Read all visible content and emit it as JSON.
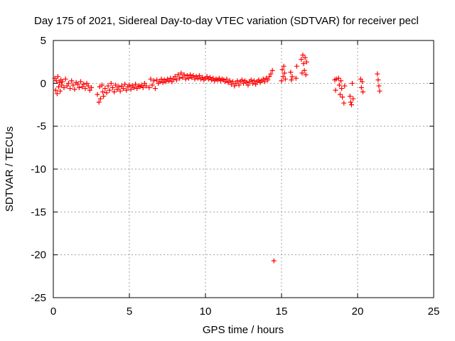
{
  "chart_data": {
    "type": "scatter",
    "title": "Day 175 of 2021, Sidereal Day-to-day VTEC variation (SDTVAR) for receiver pecl",
    "xlabel": "GPS time / hours",
    "ylabel": "SDTVAR / TECUs",
    "xlim": [
      0,
      25
    ],
    "ylim": [
      -25,
      5
    ],
    "x_ticks": [
      0,
      5,
      10,
      15,
      20,
      25
    ],
    "y_ticks": [
      -25,
      -20,
      -15,
      -10,
      -5,
      0,
      5
    ],
    "x_tick_labels": [
      "0",
      "5",
      "10",
      "15",
      "20",
      "25"
    ],
    "y_tick_labels": [
      "-25",
      "-20",
      "-15",
      "-10",
      "-5",
      "0",
      "5"
    ],
    "grid": true,
    "marker": "+",
    "color": "#ff0000",
    "series": [
      {
        "name": "SDTVAR",
        "points": [
          [
            0.1,
            0.6
          ],
          [
            0.15,
            -0.8
          ],
          [
            0.2,
            0.3
          ],
          [
            0.25,
            -1.2
          ],
          [
            0.3,
            0.8
          ],
          [
            0.35,
            -0.4
          ],
          [
            0.4,
            0.1
          ],
          [
            0.45,
            -0.9
          ],
          [
            0.5,
            0.4
          ],
          [
            0.55,
            -0.2
          ],
          [
            0.6,
            0.2
          ],
          [
            0.7,
            -0.5
          ],
          [
            0.8,
            0.5
          ],
          [
            0.9,
            -0.3
          ],
          [
            1.0,
            0.0
          ],
          [
            1.1,
            -0.6
          ],
          [
            1.2,
            0.3
          ],
          [
            1.3,
            -0.2
          ],
          [
            1.4,
            -0.7
          ],
          [
            1.5,
            0.1
          ],
          [
            1.6,
            -0.1
          ],
          [
            1.7,
            -0.5
          ],
          [
            1.8,
            0.2
          ],
          [
            1.9,
            -0.4
          ],
          [
            2.0,
            -0.1
          ],
          [
            2.1,
            -0.6
          ],
          [
            2.2,
            0.0
          ],
          [
            2.3,
            -0.3
          ],
          [
            2.4,
            -0.8
          ],
          [
            2.5,
            -0.5
          ],
          [
            2.9,
            -1.3
          ],
          [
            3.0,
            -2.2
          ],
          [
            3.05,
            -0.4
          ],
          [
            3.1,
            -1.8
          ],
          [
            3.2,
            -0.2
          ],
          [
            3.25,
            -1.0
          ],
          [
            3.3,
            -1.5
          ],
          [
            3.4,
            -0.6
          ],
          [
            3.5,
            -1.1
          ],
          [
            3.6,
            -0.3
          ],
          [
            3.7,
            -0.8
          ],
          [
            3.8,
            0.0
          ],
          [
            3.9,
            -0.5
          ],
          [
            4.0,
            -1.0
          ],
          [
            4.1,
            -0.2
          ],
          [
            4.2,
            -0.7
          ],
          [
            4.3,
            -0.4
          ],
          [
            4.4,
            -0.9
          ],
          [
            4.5,
            -0.3
          ],
          [
            4.6,
            -0.6
          ],
          [
            4.7,
            -0.1
          ],
          [
            4.8,
            -0.8
          ],
          [
            4.9,
            -0.4
          ],
          [
            5.0,
            -0.2
          ],
          [
            5.1,
            -0.7
          ],
          [
            5.2,
            -0.3
          ],
          [
            5.3,
            -0.5
          ],
          [
            5.4,
            -0.1
          ],
          [
            5.5,
            -0.6
          ],
          [
            5.6,
            -0.3
          ],
          [
            5.7,
            -0.4
          ],
          [
            5.8,
            -0.2
          ],
          [
            5.9,
            -0.5
          ],
          [
            6.0,
            0.0
          ],
          [
            6.1,
            -0.3
          ],
          [
            6.3,
            -0.5
          ],
          [
            6.4,
            0.5
          ],
          [
            6.5,
            -0.2
          ],
          [
            6.6,
            0.3
          ],
          [
            6.7,
            -0.6
          ],
          [
            6.8,
            0.4
          ],
          [
            6.9,
            0.0
          ],
          [
            7.0,
            0.2
          ],
          [
            7.1,
            0.5
          ],
          [
            7.2,
            0.1
          ],
          [
            7.3,
            0.4
          ],
          [
            7.4,
            0.2
          ],
          [
            7.5,
            0.5
          ],
          [
            7.6,
            0.3
          ],
          [
            7.7,
            0.6
          ],
          [
            7.8,
            0.2
          ],
          [
            7.9,
            0.5
          ],
          [
            8.0,
            0.8
          ],
          [
            8.1,
            0.4
          ],
          [
            8.2,
            1.0
          ],
          [
            8.3,
            0.6
          ],
          [
            8.4,
            1.2
          ],
          [
            8.5,
            0.7
          ],
          [
            8.6,
            1.0
          ],
          [
            8.7,
            0.5
          ],
          [
            8.8,
            0.9
          ],
          [
            8.9,
            0.6
          ],
          [
            9.0,
            1.0
          ],
          [
            9.1,
            0.7
          ],
          [
            9.2,
            0.9
          ],
          [
            9.3,
            0.5
          ],
          [
            9.4,
            0.8
          ],
          [
            9.5,
            0.6
          ],
          [
            9.6,
            0.9
          ],
          [
            9.7,
            0.5
          ],
          [
            9.8,
            0.7
          ],
          [
            9.9,
            0.4
          ],
          [
            10.0,
            0.6
          ],
          [
            10.1,
            0.8
          ],
          [
            10.2,
            0.5
          ],
          [
            10.3,
            0.7
          ],
          [
            10.4,
            0.4
          ],
          [
            10.5,
            0.6
          ],
          [
            10.6,
            0.3
          ],
          [
            10.7,
            0.5
          ],
          [
            10.8,
            0.4
          ],
          [
            10.9,
            0.6
          ],
          [
            11.0,
            0.3
          ],
          [
            11.1,
            0.5
          ],
          [
            11.2,
            0.4
          ],
          [
            11.3,
            0.2
          ],
          [
            11.4,
            0.5
          ],
          [
            11.5,
            0.1
          ],
          [
            11.6,
            0.3
          ],
          [
            11.7,
            -0.1
          ],
          [
            11.8,
            0.2
          ],
          [
            11.9,
            -0.3
          ],
          [
            12.0,
            0.0
          ],
          [
            12.1,
            0.3
          ],
          [
            12.2,
            -0.2
          ],
          [
            12.3,
            0.2
          ],
          [
            12.4,
            0.4
          ],
          [
            12.5,
            0.0
          ],
          [
            12.6,
            0.3
          ],
          [
            12.7,
            0.1
          ],
          [
            12.8,
            -0.2
          ],
          [
            12.9,
            0.2
          ],
          [
            13.0,
            0.4
          ],
          [
            13.1,
            0.0
          ],
          [
            13.2,
            0.3
          ],
          [
            13.3,
            -0.1
          ],
          [
            13.4,
            0.2
          ],
          [
            13.5,
            0.4
          ],
          [
            13.6,
            0.1
          ],
          [
            13.7,
            0.3
          ],
          [
            13.8,
            0.5
          ],
          [
            13.9,
            0.2
          ],
          [
            14.0,
            0.6
          ],
          [
            14.1,
            0.4
          ],
          [
            14.2,
            0.8
          ],
          [
            14.3,
            1.1
          ],
          [
            14.4,
            1.5
          ],
          [
            14.5,
            -20.7
          ],
          [
            15.0,
            0.3
          ],
          [
            15.05,
            1.6
          ],
          [
            15.1,
            0.8
          ],
          [
            15.15,
            2.0
          ],
          [
            15.2,
            1.2
          ],
          [
            15.25,
            0.5
          ],
          [
            15.6,
            1.3
          ],
          [
            15.65,
            0.4
          ],
          [
            15.7,
            0.8
          ],
          [
            15.95,
            0.6
          ],
          [
            16.0,
            2.0
          ],
          [
            16.3,
            2.8
          ],
          [
            16.35,
            1.2
          ],
          [
            16.4,
            3.3
          ],
          [
            16.45,
            2.3
          ],
          [
            16.5,
            1.5
          ],
          [
            16.55,
            3.0
          ],
          [
            16.6,
            1.0
          ],
          [
            16.65,
            2.5
          ],
          [
            18.5,
            0.4
          ],
          [
            18.55,
            -0.8
          ],
          [
            18.6,
            0.5
          ],
          [
            18.75,
            0.6
          ],
          [
            18.8,
            -0.2
          ],
          [
            18.85,
            -1.3
          ],
          [
            18.9,
            0.3
          ],
          [
            18.95,
            -0.6
          ],
          [
            19.0,
            -1.6
          ],
          [
            19.1,
            -2.3
          ],
          [
            19.15,
            -0.3
          ],
          [
            19.5,
            -1.5
          ],
          [
            19.55,
            -2.2
          ],
          [
            19.6,
            -2.5
          ],
          [
            19.65,
            0.0
          ],
          [
            19.7,
            -1.8
          ],
          [
            20.2,
            0.5
          ],
          [
            20.25,
            -0.5
          ],
          [
            20.3,
            0.2
          ],
          [
            20.35,
            -1.0
          ],
          [
            21.3,
            1.1
          ],
          [
            21.35,
            0.4
          ],
          [
            21.4,
            -0.3
          ],
          [
            21.45,
            -0.9
          ]
        ]
      }
    ]
  }
}
